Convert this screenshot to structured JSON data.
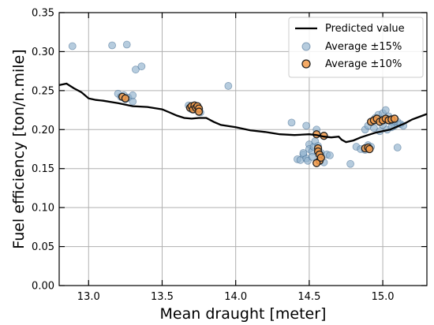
{
  "chart_data": {
    "type": "scatter",
    "xlabel": "Mean draught [meter]",
    "ylabel": "Fuel efficiency [ton/n.mile]",
    "xlim": [
      12.8,
      15.3
    ],
    "ylim": [
      0.0,
      0.35
    ],
    "xticks": [
      "13.0",
      "13.5",
      "14.0",
      "14.5",
      "15.0"
    ],
    "xtick_values": [
      13.0,
      13.5,
      14.0,
      14.5,
      15.0
    ],
    "yticks": [
      "0.00",
      "0.05",
      "0.10",
      "0.15",
      "0.20",
      "0.25",
      "0.30",
      "0.35"
    ],
    "ytick_values": [
      0.0,
      0.05,
      0.1,
      0.15,
      0.2,
      0.25,
      0.3,
      0.35
    ],
    "grid": true,
    "legend_position": "top-right",
    "series": [
      {
        "name": "Predicted value",
        "kind": "line",
        "color": "#000000",
        "x": [
          12.8,
          12.85,
          12.9,
          12.95,
          13.0,
          13.05,
          13.1,
          13.2,
          13.3,
          13.4,
          13.5,
          13.55,
          13.6,
          13.65,
          13.7,
          13.75,
          13.8,
          13.85,
          13.9,
          14.0,
          14.1,
          14.2,
          14.3,
          14.4,
          14.5,
          14.55,
          14.6,
          14.65,
          14.7,
          14.72,
          14.75,
          14.8,
          14.85,
          14.9,
          14.95,
          15.0,
          15.05,
          15.1,
          15.15,
          15.2,
          15.3
        ],
        "y": [
          0.257,
          0.259,
          0.253,
          0.248,
          0.24,
          0.238,
          0.237,
          0.234,
          0.23,
          0.229,
          0.226,
          0.222,
          0.218,
          0.215,
          0.214,
          0.215,
          0.215,
          0.21,
          0.206,
          0.203,
          0.199,
          0.197,
          0.194,
          0.193,
          0.194,
          0.193,
          0.191,
          0.19,
          0.191,
          0.187,
          0.184,
          0.186,
          0.19,
          0.193,
          0.196,
          0.198,
          0.2,
          0.204,
          0.208,
          0.213,
          0.22
        ]
      },
      {
        "name": "Average ±15%",
        "kind": "scatter",
        "color": "#8fb0cc",
        "points": [
          [
            12.89,
            0.307
          ],
          [
            13.16,
            0.308
          ],
          [
            13.26,
            0.309
          ],
          [
            13.32,
            0.277
          ],
          [
            13.36,
            0.281
          ],
          [
            13.2,
            0.246
          ],
          [
            13.22,
            0.242
          ],
          [
            13.24,
            0.244
          ],
          [
            13.25,
            0.239
          ],
          [
            13.27,
            0.241
          ],
          [
            13.3,
            0.236
          ],
          [
            13.3,
            0.244
          ],
          [
            13.68,
            0.231
          ],
          [
            13.7,
            0.226
          ],
          [
            13.73,
            0.229
          ],
          [
            13.75,
            0.225
          ],
          [
            13.76,
            0.222
          ],
          [
            13.95,
            0.256
          ],
          [
            14.38,
            0.209
          ],
          [
            14.48,
            0.205
          ],
          [
            14.78,
            0.156
          ],
          [
            14.42,
            0.162
          ],
          [
            14.44,
            0.161
          ],
          [
            14.46,
            0.168
          ],
          [
            14.48,
            0.163
          ],
          [
            14.49,
            0.16
          ],
          [
            14.5,
            0.181
          ],
          [
            14.5,
            0.175
          ],
          [
            14.52,
            0.172
          ],
          [
            14.52,
            0.165
          ],
          [
            14.53,
            0.178
          ],
          [
            14.54,
            0.185
          ],
          [
            14.55,
            0.2
          ],
          [
            14.56,
            0.179
          ],
          [
            14.57,
            0.16
          ],
          [
            14.58,
            0.17
          ],
          [
            14.6,
            0.158
          ],
          [
            14.62,
            0.168
          ],
          [
            14.64,
            0.167
          ],
          [
            14.46,
            0.17
          ],
          [
            14.82,
            0.178
          ],
          [
            14.85,
            0.175
          ],
          [
            14.88,
            0.174
          ],
          [
            14.9,
            0.18
          ],
          [
            14.92,
            0.178
          ],
          [
            14.88,
            0.2
          ],
          [
            14.9,
            0.205
          ],
          [
            14.92,
            0.21
          ],
          [
            14.95,
            0.215
          ],
          [
            14.97,
            0.219
          ],
          [
            15.0,
            0.221
          ],
          [
            15.02,
            0.225
          ],
          [
            15.04,
            0.217
          ],
          [
            15.05,
            0.212
          ],
          [
            15.07,
            0.209
          ],
          [
            15.08,
            0.205
          ],
          [
            15.1,
            0.21
          ],
          [
            15.12,
            0.207
          ],
          [
            15.14,
            0.205
          ],
          [
            14.94,
            0.202
          ],
          [
            14.98,
            0.198
          ],
          [
            15.0,
            0.206
          ],
          [
            15.03,
            0.2
          ],
          [
            15.06,
            0.203
          ],
          [
            15.1,
            0.177
          ]
        ]
      },
      {
        "name": "Average ±10%",
        "kind": "scatter",
        "color": "#f39b4a",
        "points": [
          [
            13.23,
            0.242
          ],
          [
            13.25,
            0.24
          ],
          [
            13.69,
            0.228
          ],
          [
            13.7,
            0.23
          ],
          [
            13.71,
            0.226
          ],
          [
            13.72,
            0.231
          ],
          [
            13.73,
            0.228
          ],
          [
            13.74,
            0.23
          ],
          [
            13.75,
            0.227
          ],
          [
            13.75,
            0.223
          ],
          [
            14.55,
            0.194
          ],
          [
            14.56,
            0.176
          ],
          [
            14.56,
            0.172
          ],
          [
            14.57,
            0.168
          ],
          [
            14.57,
            0.16
          ],
          [
            14.55,
            0.157
          ],
          [
            14.58,
            0.164
          ],
          [
            14.6,
            0.192
          ],
          [
            14.88,
            0.176
          ],
          [
            14.9,
            0.177
          ],
          [
            14.91,
            0.175
          ],
          [
            14.92,
            0.21
          ],
          [
            14.94,
            0.212
          ],
          [
            14.96,
            0.214
          ],
          [
            14.98,
            0.21
          ],
          [
            15.0,
            0.212
          ],
          [
            15.02,
            0.214
          ],
          [
            15.04,
            0.212
          ],
          [
            15.06,
            0.213
          ],
          [
            15.08,
            0.214
          ]
        ]
      }
    ]
  }
}
